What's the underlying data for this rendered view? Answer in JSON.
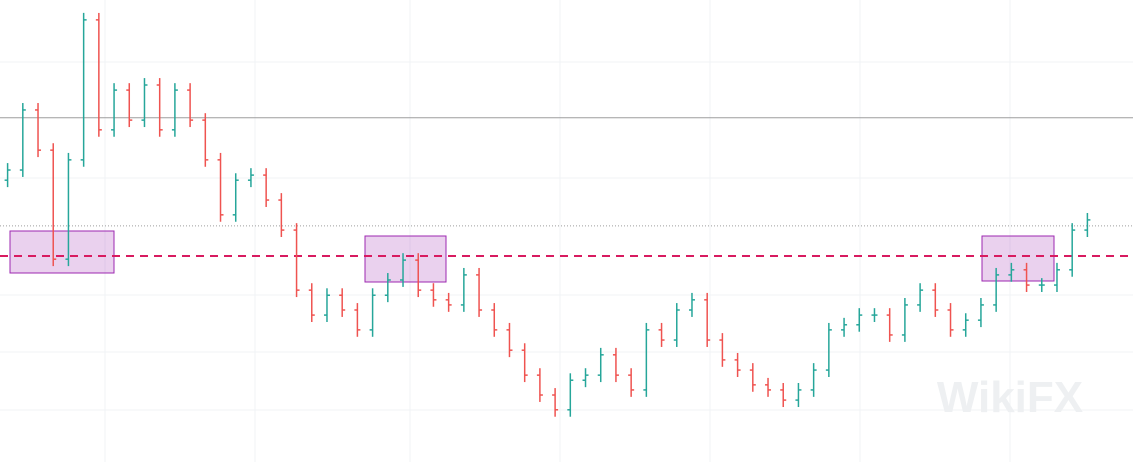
{
  "chart_data": {
    "type": "ohlc",
    "up_color": "#26a69a",
    "down_color": "#ef5350",
    "ylim": [
      0,
      100
    ],
    "grid": true,
    "open": [
      61.0,
      63.2,
      76.2,
      67.5,
      43.9,
      65.4,
      95.7,
      71.9,
      80.5,
      74.0,
      81.6,
      71.9,
      80.5,
      74.0,
      65.4,
      53.5,
      61.0,
      62.1,
      56.7,
      50.2,
      37.2,
      31.8,
      36.1,
      32.9,
      28.6,
      36.1,
      39.4,
      43.7,
      37.2,
      35.1,
      34.0,
      40.5,
      32.9,
      28.6,
      24.2,
      18.8,
      14.5,
      11.3,
      17.7,
      18.8,
      23.2,
      18.8,
      15.6,
      28.6,
      26.4,
      32.9,
      35.1,
      26.4,
      22.1,
      19.9,
      16.7,
      15.6,
      13.4,
      15.6,
      19.9,
      28.6,
      29.7,
      31.8,
      31.8,
      27.5,
      34.0,
      37.2,
      32.9,
      28.6,
      30.7,
      34.0,
      40.5,
      41.6,
      38.3,
      38.3,
      41.6,
      50.2
    ],
    "high": [
      64.7,
      77.7,
      77.7,
      69.0,
      66.9,
      97.2,
      97.2,
      82.0,
      82.0,
      83.1,
      83.1,
      82.0,
      82.0,
      75.5,
      66.9,
      62.5,
      63.6,
      63.6,
      58.2,
      51.7,
      38.7,
      37.6,
      37.6,
      34.4,
      37.6,
      40.9,
      45.2,
      45.2,
      38.7,
      36.6,
      42.0,
      42.0,
      34.4,
      30.1,
      25.7,
      20.3,
      16.0,
      19.2,
      20.3,
      24.7,
      24.7,
      20.3,
      30.1,
      30.1,
      34.4,
      36.6,
      36.6,
      27.9,
      23.6,
      21.4,
      18.2,
      17.1,
      17.1,
      21.4,
      30.1,
      31.2,
      33.3,
      33.3,
      33.3,
      35.5,
      38.7,
      38.7,
      34.4,
      32.2,
      35.5,
      42.0,
      43.1,
      43.1,
      39.8,
      43.1,
      51.7,
      53.9
    ],
    "low": [
      59.5,
      61.7,
      66.0,
      42.4,
      42.4,
      63.9,
      70.4,
      70.4,
      72.5,
      72.5,
      70.4,
      70.4,
      72.5,
      63.9,
      52.0,
      52.0,
      59.5,
      55.2,
      48.7,
      35.7,
      30.3,
      30.3,
      31.4,
      27.1,
      27.1,
      34.6,
      37.9,
      35.7,
      33.6,
      32.5,
      32.5,
      31.4,
      27.1,
      22.7,
      17.3,
      13.0,
      9.8,
      9.8,
      16.2,
      17.3,
      17.3,
      14.1,
      14.1,
      24.9,
      24.9,
      31.4,
      24.9,
      20.6,
      18.4,
      15.2,
      14.1,
      11.9,
      11.9,
      14.1,
      18.4,
      27.1,
      28.2,
      30.3,
      26.0,
      26.0,
      32.5,
      31.4,
      27.1,
      27.1,
      29.2,
      32.5,
      39.0,
      36.8,
      36.8,
      36.8,
      40.1,
      48.7
    ],
    "close": [
      63.2,
      76.2,
      67.5,
      43.9,
      65.4,
      95.7,
      71.9,
      80.5,
      74.0,
      81.6,
      71.9,
      80.5,
      74.0,
      65.4,
      53.5,
      61.0,
      62.1,
      56.7,
      50.2,
      37.2,
      31.8,
      36.1,
      32.9,
      28.6,
      36.1,
      39.4,
      43.7,
      37.2,
      35.1,
      34.0,
      40.5,
      32.9,
      28.6,
      24.2,
      18.8,
      14.5,
      11.3,
      17.7,
      18.8,
      23.2,
      18.8,
      15.6,
      28.6,
      26.4,
      32.9,
      35.1,
      26.4,
      22.1,
      19.9,
      16.7,
      15.6,
      13.4,
      15.6,
      19.9,
      28.6,
      29.7,
      31.8,
      31.8,
      27.5,
      34.0,
      37.2,
      32.9,
      28.6,
      30.7,
      34.0,
      40.5,
      41.6,
      38.3,
      38.3,
      41.6,
      50.2,
      52.4
    ],
    "levels": [
      {
        "value": 74.5,
        "style": "solid",
        "color": "#9e9e9e"
      },
      {
        "value": 51.1,
        "style": "dotted",
        "color": "#9e9e9e"
      },
      {
        "value": 44.6,
        "style": "dashed",
        "color": "#d81b60"
      }
    ]
  },
  "watermark": "WikiFX"
}
